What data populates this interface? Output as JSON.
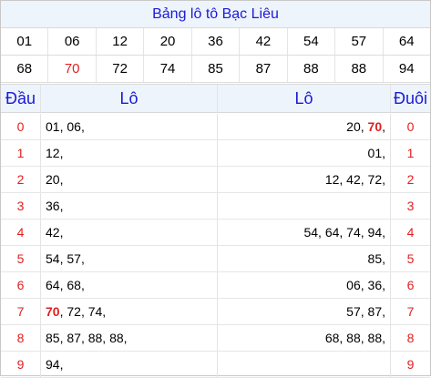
{
  "title": "Bảng lô tô Bạc Liêu",
  "numbers_row1": [
    "01",
    "06",
    "12",
    "20",
    "36",
    "42",
    "54",
    "57",
    "64"
  ],
  "numbers_row2": [
    "68",
    "70",
    "72",
    "74",
    "85",
    "87",
    "88",
    "88",
    "94"
  ],
  "highlight_number": "70",
  "headers": {
    "dau": "Đầu",
    "lo_left": "Lô",
    "lo_right": "Lô",
    "duoi": "Đuôi"
  },
  "rows": [
    {
      "dau": "0",
      "lo_left": "01, 06,",
      "lo_right": "20, 70,",
      "duoi": "0"
    },
    {
      "dau": "1",
      "lo_left": "12,",
      "lo_right": "01,",
      "duoi": "1"
    },
    {
      "dau": "2",
      "lo_left": "20,",
      "lo_right": "12, 42, 72,",
      "duoi": "2"
    },
    {
      "dau": "3",
      "lo_left": "36,",
      "lo_right": "",
      "duoi": "3"
    },
    {
      "dau": "4",
      "lo_left": "42,",
      "lo_right": "54, 64, 74, 94,",
      "duoi": "4"
    },
    {
      "dau": "5",
      "lo_left": "54, 57,",
      "lo_right": "85,",
      "duoi": "5"
    },
    {
      "dau": "6",
      "lo_left": "64, 68,",
      "lo_right": "06, 36,",
      "duoi": "6"
    },
    {
      "dau": "7",
      "lo_left": "70, 72, 74,",
      "lo_right": "57, 87,",
      "duoi": "7"
    },
    {
      "dau": "8",
      "lo_left": "85, 87, 88, 88,",
      "lo_right": "68, 88, 88,",
      "duoi": "8"
    },
    {
      "dau": "9",
      "lo_left": "94,",
      "lo_right": "",
      "duoi": "9"
    }
  ],
  "colors": {
    "title_text": "#1a1ad8",
    "highlight": "#e02020",
    "header_bg": "#eef4fb"
  }
}
